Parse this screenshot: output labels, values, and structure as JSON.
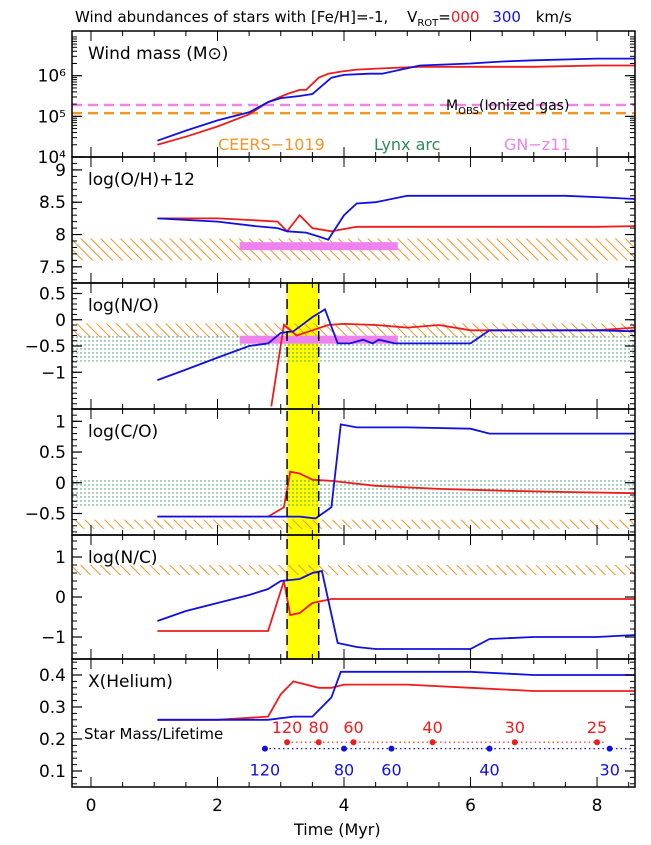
{
  "title": {
    "prefix": "Wind abundances of stars with [Fe/H]=-1,",
    "vrot_label": "V",
    "vrot_sub": "ROT",
    "eq": "=",
    "v0": "000",
    "v300": "300",
    "unit": "km/s"
  },
  "colors": {
    "v0": "#ee1c1c",
    "v300": "#1010e0",
    "ceers": "#f0962a",
    "lynx": "#2e8b57",
    "gnz11": "#ee82ee",
    "band": "#ffff00"
  },
  "xlabel": "Time (Myr)",
  "x_ticks": [
    "0",
    "2",
    "4",
    "6",
    "8"
  ],
  "legend": {
    "ceers": "CEERS−1019",
    "lynx": "Lynx arc",
    "gnz11": "GN−z11"
  },
  "mobs_label": "M",
  "mobs_sub": "OBS",
  "mobs_rest": "(Ionized gas)",
  "star_mass_label": "Star Mass/Lifetime",
  "chart_data": {
    "type": "line",
    "x_range": [
      -0.3,
      8.6
    ],
    "highlight_band": [
      3.1,
      3.6
    ],
    "panels": [
      {
        "id": "wind-mass",
        "label": "Wind mass (M⊙)",
        "scale": "log",
        "ylim": [
          4.0,
          7.1
        ],
        "y_ticks": [
          {
            "v": 4,
            "label": "10⁴"
          },
          {
            "v": 5,
            "label": "10⁵"
          },
          {
            "v": 6,
            "label": "10⁶"
          }
        ],
        "reference_lines": [
          {
            "name": "M_OBS GN-z11",
            "value": 5.28,
            "color": "gnz11"
          },
          {
            "name": "M_OBS CEERS-1019",
            "value": 5.08,
            "color": "ceers"
          }
        ],
        "series": [
          {
            "color": "v0",
            "x": [
              1.05,
              1.5,
              2.0,
              2.5,
              2.8,
              3.1,
              3.3,
              3.4,
              3.5,
              3.6,
              3.75,
              3.95,
              4.2,
              4.6,
              5.2,
              6.0,
              7.0,
              8.0,
              8.6
            ],
            "y": [
              4.3,
              4.5,
              4.75,
              5.05,
              5.35,
              5.55,
              5.65,
              5.65,
              5.8,
              5.95,
              6.05,
              6.1,
              6.15,
              6.18,
              6.22,
              6.22,
              6.22,
              6.25,
              6.25
            ]
          },
          {
            "color": "v300",
            "x": [
              1.05,
              1.5,
              2.0,
              2.5,
              2.8,
              3.0,
              3.3,
              3.5,
              3.8,
              4.0,
              4.4,
              4.6,
              5.2,
              6.0,
              6.5,
              7.0,
              8.0,
              8.6
            ],
            "y": [
              4.4,
              4.65,
              4.9,
              5.1,
              5.35,
              5.45,
              5.5,
              5.55,
              5.95,
              6.02,
              6.05,
              6.05,
              6.25,
              6.3,
              6.35,
              6.38,
              6.42,
              6.42
            ]
          }
        ]
      },
      {
        "id": "oh",
        "label": "log(O/H)+12",
        "scale": "linear",
        "ylim": [
          7.25,
          9.2
        ],
        "y_ticks": [
          {
            "v": 7.5,
            "label": "7.5"
          },
          {
            "v": 8,
            "label": "8"
          },
          {
            "v": 8.5,
            "label": "8.5"
          },
          {
            "v": 9,
            "label": "9"
          }
        ],
        "bands": [
          {
            "name": "CEERS-1019",
            "from": 7.6,
            "to": 7.94,
            "color": "ceers",
            "pattern": "hatch"
          }
        ],
        "bars": [
          {
            "name": "GN-z11",
            "from_x": 2.35,
            "to_x": 4.85,
            "y": 7.82,
            "color": "gnz11"
          }
        ],
        "series": [
          {
            "color": "v0",
            "x": [
              1.05,
              2.0,
              2.6,
              2.95,
              3.1,
              3.3,
              3.5,
              3.8,
              4.2,
              5.0,
              6.0,
              7.0,
              8.0,
              8.6
            ],
            "y": [
              8.25,
              8.25,
              8.22,
              8.2,
              8.05,
              8.3,
              8.1,
              8.05,
              8.12,
              8.12,
              8.12,
              8.12,
              8.12,
              8.13
            ]
          },
          {
            "color": "v300",
            "x": [
              1.05,
              2.0,
              2.6,
              2.95,
              3.1,
              3.4,
              3.6,
              3.75,
              4.0,
              4.2,
              4.5,
              5.0,
              6.0,
              7.0,
              7.5,
              8.0,
              8.6
            ],
            "y": [
              8.25,
              8.2,
              8.13,
              8.1,
              8.05,
              8.03,
              7.97,
              7.92,
              8.3,
              8.48,
              8.5,
              8.6,
              8.6,
              8.6,
              8.6,
              8.58,
              8.55
            ]
          }
        ]
      },
      {
        "id": "no",
        "label": "log(N/O)",
        "scale": "linear",
        "ylim": [
          -1.7,
          0.7
        ],
        "y_ticks": [
          {
            "v": -1,
            "label": "−1"
          },
          {
            "v": -0.5,
            "label": "−0.5"
          },
          {
            "v": 0,
            "label": "0"
          },
          {
            "v": 0.5,
            "label": "0.5"
          }
        ],
        "bands": [
          {
            "name": "CEERS-1019",
            "from": -0.33,
            "to": -0.07,
            "color": "ceers",
            "pattern": "hatch"
          },
          {
            "name": "Lynx arc",
            "from": -0.8,
            "to": -0.3,
            "color": "lynx",
            "pattern": "dots"
          }
        ],
        "bars": [
          {
            "name": "GN-z11",
            "from_x": 2.35,
            "to_x": 4.85,
            "y": -0.38,
            "color": "gnz11"
          }
        ],
        "series": [
          {
            "color": "v0",
            "x": [
              2.85,
              3.05,
              3.25,
              3.5,
              3.75,
              4.0,
              4.5,
              5.0,
              5.5,
              6.0,
              7.0,
              8.0,
              8.6
            ],
            "y": [
              -1.65,
              -0.1,
              -0.3,
              -0.2,
              -0.1,
              -0.08,
              -0.1,
              -0.15,
              -0.1,
              -0.2,
              -0.2,
              -0.2,
              -0.15
            ]
          },
          {
            "color": "v300",
            "x": [
              1.05,
              1.5,
              2.0,
              2.5,
              2.8,
              3.0,
              3.2,
              3.5,
              3.7,
              3.9,
              4.1,
              4.3,
              4.45,
              4.55,
              4.8,
              5.5,
              6.0,
              6.3,
              6.5,
              7.0,
              8.0,
              8.6
            ],
            "y": [
              -1.15,
              -0.95,
              -0.72,
              -0.5,
              -0.45,
              -0.25,
              -0.22,
              0.05,
              0.2,
              -0.45,
              -0.45,
              -0.38,
              -0.45,
              -0.38,
              -0.45,
              -0.45,
              -0.45,
              -0.2,
              -0.2,
              -0.2,
              -0.2,
              -0.22
            ]
          }
        ]
      },
      {
        "id": "co",
        "label": "log(C/O)",
        "scale": "linear",
        "ylim": [
          -0.85,
          1.2
        ],
        "y_ticks": [
          {
            "v": -0.5,
            "label": "−0.5"
          },
          {
            "v": 0,
            "label": "0"
          },
          {
            "v": 0.5,
            "label": "0.5"
          },
          {
            "v": 1,
            "label": "1"
          }
        ],
        "bands": [
          {
            "name": "Lynx arc",
            "from": -0.4,
            "to": 0.05,
            "color": "lynx",
            "pattern": "dots"
          },
          {
            "name": "CEERS-1019",
            "from": -0.75,
            "to": -0.6,
            "color": "ceers",
            "pattern": "hatch"
          }
        ],
        "series": [
          {
            "color": "v0",
            "x": [
              1.05,
              2.0,
              2.8,
              3.05,
              3.15,
              3.3,
              3.5,
              3.8,
              4.5,
              5.5,
              6.5,
              7.5,
              8.6
            ],
            "y": [
              -0.55,
              -0.55,
              -0.55,
              -0.4,
              0.18,
              0.15,
              0.05,
              0.03,
              -0.05,
              -0.1,
              -0.13,
              -0.15,
              -0.17
            ]
          },
          {
            "color": "v300",
            "x": [
              1.05,
              2.0,
              2.8,
              3.3,
              3.55,
              3.8,
              3.95,
              4.2,
              5.0,
              6.0,
              6.3,
              7.0,
              8.0,
              8.6
            ],
            "y": [
              -0.55,
              -0.55,
              -0.55,
              -0.55,
              -0.58,
              -0.4,
              0.95,
              0.9,
              0.9,
              0.88,
              0.8,
              0.8,
              0.8,
              0.8
            ]
          }
        ]
      },
      {
        "id": "nc",
        "label": "log(N/C)",
        "scale": "linear",
        "ylim": [
          -1.55,
          1.55
        ],
        "y_ticks": [
          {
            "v": -1,
            "label": "−1"
          },
          {
            "v": 0,
            "label": "0"
          },
          {
            "v": 1,
            "label": "1"
          }
        ],
        "bands": [
          {
            "name": "CEERS-1019",
            "from": 0.55,
            "to": 0.8,
            "color": "ceers",
            "pattern": "hatch"
          }
        ],
        "series": [
          {
            "color": "v0",
            "x": [
              1.05,
              2.0,
              2.8,
              3.05,
              3.15,
              3.3,
              3.5,
              3.8,
              4.2,
              5.0,
              6.0,
              7.0,
              8.0,
              8.6
            ],
            "y": [
              -0.85,
              -0.85,
              -0.85,
              0.4,
              -0.45,
              -0.4,
              -0.15,
              -0.05,
              -0.05,
              -0.05,
              -0.05,
              -0.05,
              -0.05,
              -0.05
            ]
          },
          {
            "color": "v300",
            "x": [
              1.05,
              1.5,
              2.0,
              2.5,
              2.8,
              3.0,
              3.3,
              3.5,
              3.65,
              3.9,
              4.2,
              4.5,
              5.0,
              6.0,
              6.3,
              7.0,
              8.0,
              8.6
            ],
            "y": [
              -0.6,
              -0.35,
              -0.15,
              0.05,
              0.2,
              0.4,
              0.45,
              0.6,
              0.65,
              -1.15,
              -1.25,
              -1.3,
              -1.3,
              -1.3,
              -1.05,
              -1.0,
              -1.0,
              -0.95
            ]
          }
        ]
      },
      {
        "id": "helium",
        "label": "X(Helium)",
        "scale": "linear",
        "ylim": [
          0.05,
          0.45
        ],
        "y_ticks": [
          {
            "v": 0.1,
            "label": "0.1"
          },
          {
            "v": 0.2,
            "label": "0.2"
          },
          {
            "v": 0.3,
            "label": "0.3"
          },
          {
            "v": 0.4,
            "label": "0.4"
          }
        ],
        "series": [
          {
            "color": "v0",
            "x": [
              1.05,
              2.0,
              2.8,
              3.0,
              3.2,
              3.4,
              3.6,
              3.8,
              4.0,
              5.0,
              6.0,
              7.0,
              8.6
            ],
            "y": [
              0.26,
              0.26,
              0.27,
              0.34,
              0.38,
              0.37,
              0.36,
              0.36,
              0.37,
              0.37,
              0.36,
              0.35,
              0.35
            ]
          },
          {
            "color": "v300",
            "x": [
              1.05,
              2.0,
              2.8,
              3.2,
              3.5,
              3.8,
              3.95,
              4.5,
              5.0,
              6.0,
              7.0,
              8.0,
              8.6
            ],
            "y": [
              0.26,
              0.26,
              0.26,
              0.27,
              0.27,
              0.33,
              0.41,
              0.41,
              0.41,
              0.41,
              0.4,
              0.4,
              0.4
            ]
          }
        ],
        "lifetime_markers": [
          {
            "color": "v0",
            "y": 0.19,
            "x_start": 3.1,
            "x_end": 8.15,
            "points": [
              {
                "x": 3.1,
                "label": "120"
              },
              {
                "x": 3.6,
                "label": "80"
              },
              {
                "x": 4.15,
                "label": "60"
              },
              {
                "x": 5.4,
                "label": "40"
              },
              {
                "x": 6.7,
                "label": "30"
              },
              {
                "x": 8.0,
                "label": "25"
              }
            ]
          },
          {
            "color": "v300",
            "y": 0.17,
            "x_start": 2.75,
            "x_end": 8.6,
            "points": [
              {
                "x": 2.75,
                "label": "120"
              },
              {
                "x": 4.0,
                "label": "80"
              },
              {
                "x": 4.75,
                "label": "60"
              },
              {
                "x": 6.3,
                "label": "40"
              },
              {
                "x": 8.2,
                "label": "30"
              }
            ]
          }
        ]
      }
    ]
  }
}
